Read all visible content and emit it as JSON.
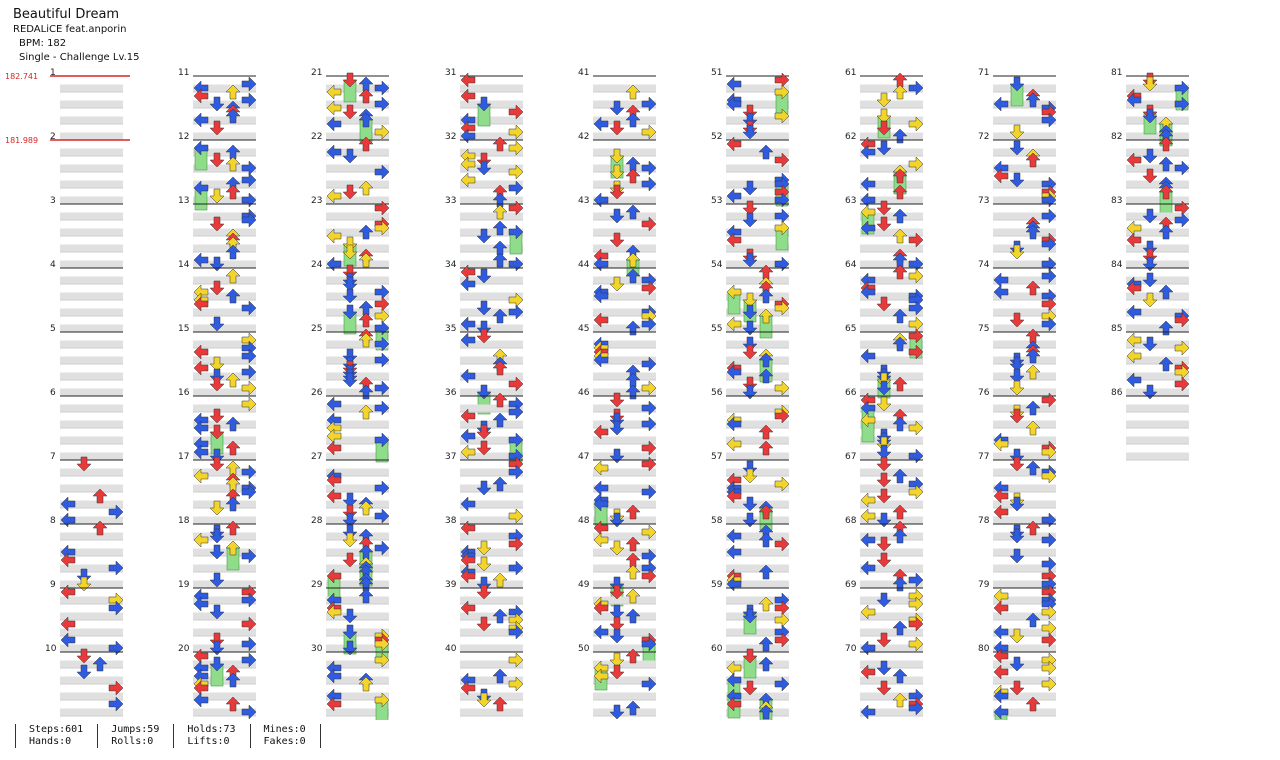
{
  "song": {
    "title": "Beautiful Dream",
    "artist": "REDALiCE feat.anporin",
    "bpm": "BPM: 182",
    "chart_type": "Single - Challenge Lv.15"
  },
  "bpm_changes": [
    {
      "measure": 1,
      "label": "182.741"
    },
    {
      "measure": 2,
      "label": "181.989"
    }
  ],
  "measure_count": 86,
  "colors": {
    "quarter": "#e83a3a",
    "eighth": "#2f5be0",
    "sixteenth": "#f2d42a",
    "hold": "#8fdc8a",
    "bpm_marker": "#d92424",
    "band": "#e0e0e0"
  },
  "stats": {
    "steps": "Steps:601",
    "hands": "Hands:0",
    "jumps": "Jumps:59",
    "rolls": "Rolls:0",
    "holds": "Holds:73",
    "lifts": "Lifts:0",
    "mines": "Mines:0",
    "fakes": "Fakes:0"
  }
}
